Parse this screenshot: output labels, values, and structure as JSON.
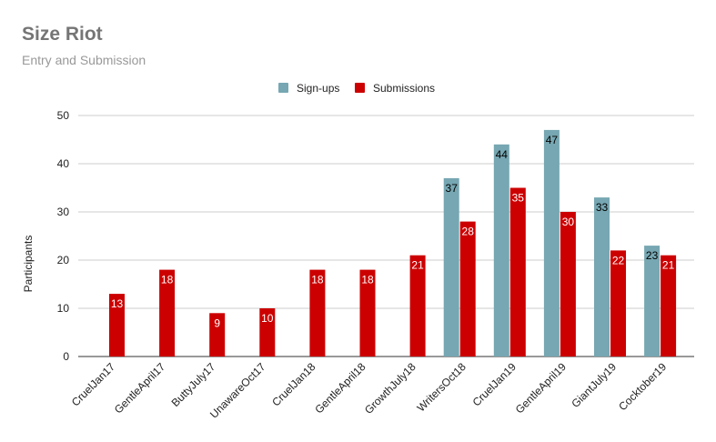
{
  "chart_data": {
    "type": "bar",
    "title": "Size Riot",
    "subtitle": "Entry and Submission",
    "xlabel": "",
    "ylabel": "Participants",
    "ylim": [
      0,
      50
    ],
    "yticks": [
      0,
      10,
      20,
      30,
      40,
      50
    ],
    "grid": true,
    "legend": "top-center",
    "categories": [
      "CruelJan17",
      "GentleApril17",
      "ButtyJuly17",
      "UnawareOct17",
      "CruelJan18",
      "GentleApril18",
      "GrowthJuly18",
      "WritersOct18",
      "CruelJan19",
      "GentleApril19",
      "GiantJuly19",
      "Cocktober19"
    ],
    "series": [
      {
        "name": "Sign-ups",
        "color": "#76a7b2",
        "label_color": "#000000",
        "values": [
          null,
          null,
          null,
          null,
          null,
          null,
          null,
          37,
          44,
          47,
          33,
          23
        ]
      },
      {
        "name": "Submissions",
        "color": "#cc0000",
        "label_color": "#ffffff",
        "values": [
          13,
          18,
          9,
          10,
          18,
          18,
          21,
          28,
          35,
          30,
          22,
          21
        ]
      }
    ]
  }
}
